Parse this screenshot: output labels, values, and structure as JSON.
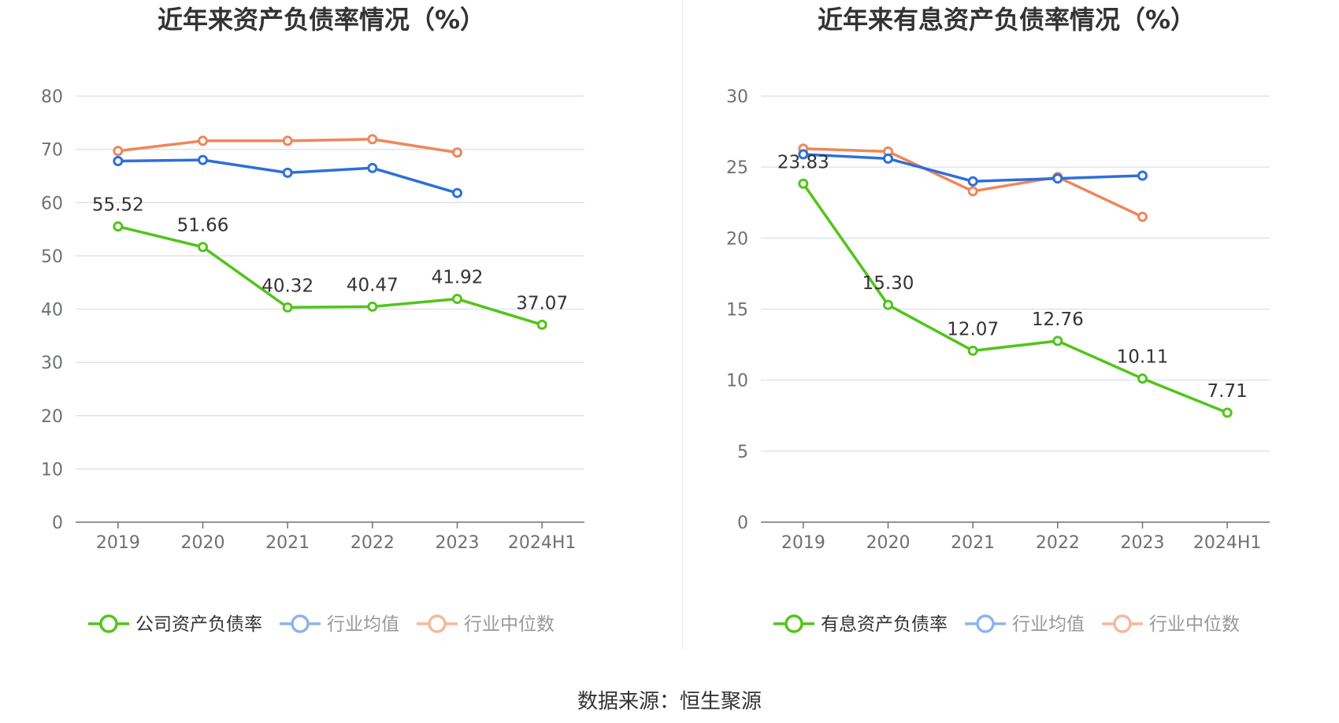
{
  "source_text": "数据来源：恒生聚源",
  "colors": {
    "company": "#52c41a",
    "avg": "#2d6fdb",
    "median": "#f0865a",
    "grid": "#dfe3f0",
    "axis": "#6e7079"
  },
  "chart_data": [
    {
      "type": "line",
      "title": "近年来资产负债率情况（%）",
      "categories": [
        "2019",
        "2020",
        "2021",
        "2022",
        "2023",
        "2024H1"
      ],
      "ylim": [
        0,
        80
      ],
      "yticks": [
        0,
        10,
        20,
        30,
        40,
        50,
        60,
        70,
        80
      ],
      "legend_position": "bottom",
      "series": [
        {
          "name": "公司资产负债率",
          "key": "company",
          "values": [
            55.52,
            51.66,
            40.32,
            40.47,
            41.92,
            37.07
          ],
          "labels": [
            "55.52",
            "51.66",
            "40.32",
            "40.47",
            "41.92",
            "37.07"
          ]
        },
        {
          "name": "行业均值",
          "key": "avg",
          "values": [
            67.8,
            68.0,
            65.6,
            66.5,
            61.8,
            null
          ]
        },
        {
          "name": "行业中位数",
          "key": "median",
          "values": [
            69.7,
            71.6,
            71.6,
            71.9,
            69.4,
            null
          ]
        }
      ]
    },
    {
      "type": "line",
      "title": "近年来有息资产负债率情况（%）",
      "categories": [
        "2019",
        "2020",
        "2021",
        "2022",
        "2023",
        "2024H1"
      ],
      "ylim": [
        0,
        30
      ],
      "yticks": [
        0,
        5,
        10,
        15,
        20,
        25,
        30
      ],
      "legend_position": "bottom",
      "series": [
        {
          "name": "有息资产负债率",
          "key": "company",
          "values": [
            23.83,
            15.3,
            12.07,
            12.76,
            10.11,
            7.71
          ],
          "labels": [
            "23.83",
            "15.30",
            "12.07",
            "12.76",
            "10.11",
            "7.71"
          ]
        },
        {
          "name": "行业均值",
          "key": "avg",
          "values": [
            25.9,
            25.6,
            24.0,
            24.2,
            24.4,
            null
          ]
        },
        {
          "name": "行业中位数",
          "key": "median",
          "values": [
            26.3,
            26.1,
            23.3,
            24.3,
            21.5,
            null
          ]
        }
      ]
    }
  ]
}
